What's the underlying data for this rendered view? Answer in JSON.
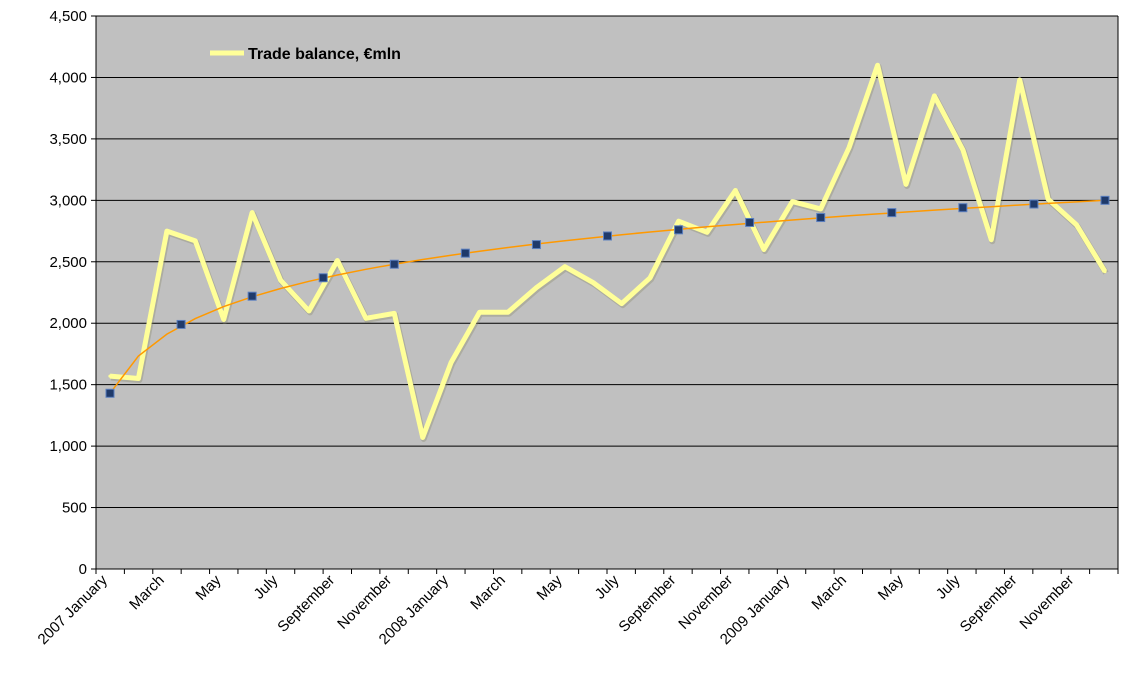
{
  "chart_data": {
    "type": "line",
    "ylim": [
      0,
      4500
    ],
    "yticks": [
      0,
      500,
      1000,
      1500,
      2000,
      2500,
      3000,
      3500,
      4000,
      4500
    ],
    "ytick_labels": [
      "0",
      "500",
      "1,000",
      "1,500",
      "2,000",
      "2,500",
      "3,000",
      "3,500",
      "4,000",
      "4,500"
    ],
    "x_tick_labels": [
      "2007 January",
      "March",
      "May",
      "July",
      "September",
      "November",
      "2008 January",
      "March",
      "May",
      "July",
      "September",
      "November",
      "2009 January",
      "March",
      "May",
      "July",
      "September",
      "November"
    ],
    "grid": true,
    "legend_position": "top-left",
    "series": [
      {
        "name": "Trade balance, €mln",
        "color": "#ffff99",
        "values": [
          1570,
          1550,
          2750,
          2670,
          2030,
          2900,
          2350,
          2100,
          2510,
          2040,
          2080,
          1070,
          1680,
          2090,
          2090,
          2290,
          2460,
          2330,
          2160,
          2370,
          2830,
          2740,
          3080,
          2600,
          2990,
          2930,
          3430,
          4100,
          3130,
          3850,
          3410,
          2680,
          3980,
          3010,
          2800,
          2420
        ]
      }
    ],
    "trend_line": {
      "color": "#ff9900",
      "marker_color": "#1f3a6b",
      "type": "logarithmic",
      "marker_values": [
        1430,
        1990,
        2220,
        2370,
        2480,
        2570,
        2640,
        2710,
        2760,
        2820,
        2860,
        2900,
        2940,
        2970,
        3000
      ]
    },
    "colors": {
      "plot_background": "#c0c0c0",
      "gridline": "#000000"
    }
  }
}
